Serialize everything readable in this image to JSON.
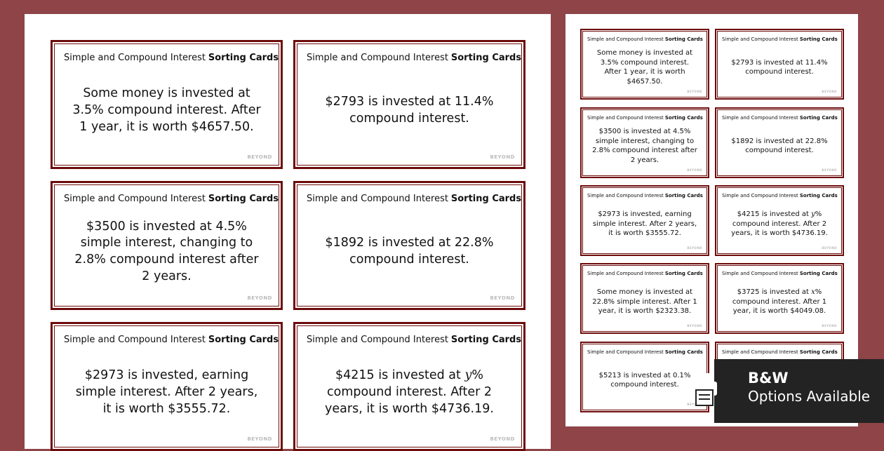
{
  "card_title": {
    "plain": "Simple and Compound Interest",
    "bold": "Sorting Cards"
  },
  "logo": "BEYOND",
  "left_page": {
    "cards": [
      {
        "body": [
          {
            "text": "Some money is invested at 3.5% compound interest. After 1 year, it is worth $4657.50."
          }
        ]
      },
      {
        "body": [
          {
            "text": "$2793 is invested at 11.4% compound interest."
          }
        ]
      },
      {
        "body": [
          {
            "text": "$3500 is invested at 4.5% simple interest, changing to 2.8% compound interest after 2 years."
          }
        ]
      },
      {
        "body": [
          {
            "text": "$1892 is invested at 22.8% compound interest."
          }
        ]
      },
      {
        "body": [
          {
            "text": "$2973 is invested, earning simple interest. After 2 years, it is worth $3555.72."
          }
        ]
      },
      {
        "body": [
          {
            "text": "$4215 is invested at "
          },
          {
            "text": "y",
            "italic": true
          },
          {
            "text": "% compound interest. After 2 years, it is worth $4736.19."
          }
        ]
      }
    ]
  },
  "right_page": {
    "cards": [
      {
        "body": [
          {
            "text": "Some money is invested at 3.5% compound interest. After 1 year, it is worth $4657.50."
          }
        ]
      },
      {
        "body": [
          {
            "text": "$2793 is invested at 11.4% compound interest."
          }
        ]
      },
      {
        "body": [
          {
            "text": "$3500 is invested at 4.5% simple interest, changing to 2.8% compound interest after 2 years."
          }
        ]
      },
      {
        "body": [
          {
            "text": "$1892 is invested at 22.8% compound interest."
          }
        ]
      },
      {
        "body": [
          {
            "text": "$2973 is invested, earning simple interest. After 2 years, it is worth $3555.72."
          }
        ]
      },
      {
        "body": [
          {
            "text": "$4215 is invested at "
          },
          {
            "text": "y",
            "italic": true
          },
          {
            "text": "% compound interest. After 2 years, it is worth $4736.19."
          }
        ]
      },
      {
        "body": [
          {
            "text": "Some money is invested at 22.8% simple interest. After 1 year, it is worth $2323.38."
          }
        ]
      },
      {
        "body": [
          {
            "text": "$3725 is invested at "
          },
          {
            "text": "x",
            "italic": true
          },
          {
            "text": "% compound interest. After 1 year, it is worth $4049.08."
          }
        ]
      },
      {
        "body": [
          {
            "text": "$5213 is invested at 0.1% compound interest."
          }
        ]
      },
      {}
    ]
  },
  "badge": {
    "line1": "B&W",
    "line2": "Options Available"
  }
}
